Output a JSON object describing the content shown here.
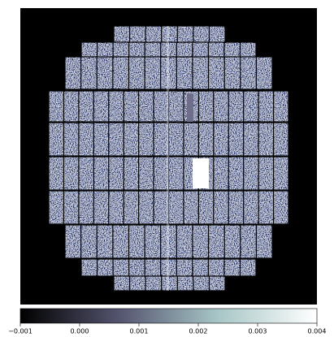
{
  "chart_data": {
    "type": "image",
    "colorbar": {
      "colormap": [
        "#000000",
        "#54546f",
        "#a7c6c6",
        "#ffffff"
      ],
      "xlim": [
        -0.001,
        0.004
      ],
      "xticks": [
        {
          "value": -0.001,
          "label": "−0.001"
        },
        {
          "value": 0.0,
          "label": "0.000"
        },
        {
          "value": 0.001,
          "label": "0.001"
        },
        {
          "value": 0.002,
          "label": "0.002"
        },
        {
          "value": 0.003,
          "label": "0.003"
        },
        {
          "value": 0.004,
          "label": "0.004"
        }
      ]
    }
  }
}
